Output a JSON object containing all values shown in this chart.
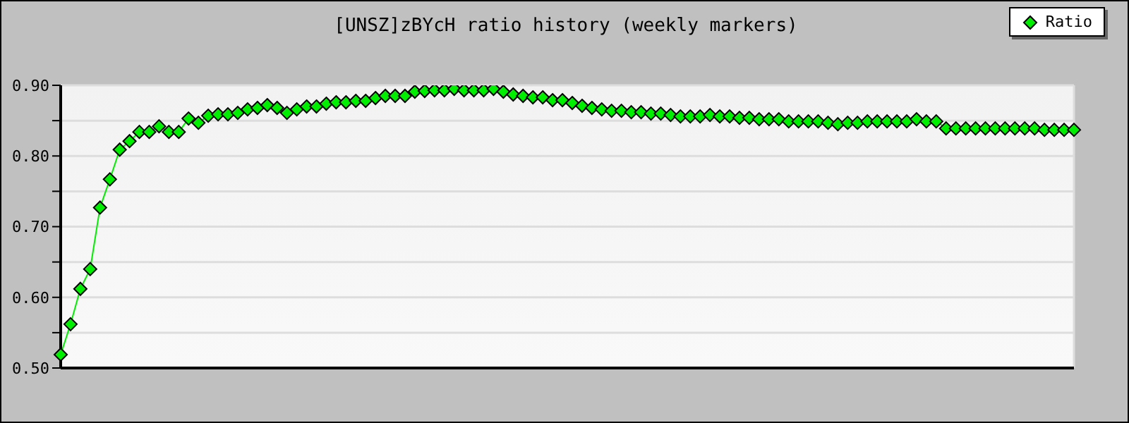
{
  "chart_data": {
    "type": "line",
    "title": "[UNSZ]zBYcH ratio history (weekly markers)",
    "categories": [
      null,
      null,
      null,
      null,
      null,
      null,
      null,
      null,
      null,
      null,
      null,
      null,
      null,
      null,
      null,
      null,
      null,
      null,
      null,
      null,
      null,
      null,
      null,
      null,
      null,
      null,
      null,
      null,
      null,
      null,
      null,
      null,
      null,
      null,
      null,
      null,
      null,
      null,
      null,
      null,
      null,
      null,
      null,
      null,
      null,
      null,
      null,
      null,
      null,
      null,
      null,
      null,
      null,
      null,
      null,
      null,
      null,
      null,
      null,
      null,
      null,
      null,
      null,
      null,
      null,
      null,
      null,
      null,
      null,
      null,
      null,
      null,
      null,
      null,
      null,
      null,
      null,
      null,
      null,
      null,
      null,
      null,
      null,
      null,
      null,
      null,
      null,
      null,
      null,
      null,
      null,
      null,
      null,
      null,
      null,
      null,
      null,
      null,
      null,
      null,
      null,
      null,
      null,
      null
    ],
    "series": [
      {
        "name": "Ratio",
        "color": "#00ee00",
        "values": [
          0.519,
          0.562,
          0.612,
          0.64,
          0.727,
          0.767,
          0.809,
          0.821,
          0.834,
          0.834,
          0.842,
          0.834,
          0.834,
          0.853,
          0.847,
          0.857,
          0.859,
          0.859,
          0.861,
          0.866,
          0.868,
          0.872,
          0.868,
          0.861,
          0.866,
          0.87,
          0.87,
          0.874,
          0.876,
          0.876,
          0.878,
          0.878,
          0.882,
          0.885,
          0.885,
          0.885,
          0.891,
          0.892,
          0.893,
          0.893,
          0.895,
          0.893,
          0.893,
          0.893,
          0.895,
          0.891,
          0.887,
          0.885,
          0.883,
          0.883,
          0.879,
          0.879,
          0.875,
          0.871,
          0.868,
          0.866,
          0.864,
          0.864,
          0.862,
          0.862,
          0.86,
          0.86,
          0.858,
          0.856,
          0.856,
          0.856,
          0.858,
          0.856,
          0.856,
          0.854,
          0.854,
          0.852,
          0.852,
          0.852,
          0.849,
          0.849,
          0.849,
          0.849,
          0.847,
          0.845,
          0.847,
          0.847,
          0.849,
          0.849,
          0.849,
          0.849,
          0.849,
          0.852,
          0.849,
          0.849,
          0.839,
          0.839,
          0.839,
          0.839,
          0.839,
          0.839,
          0.839,
          0.839,
          0.839,
          0.839,
          0.837,
          0.837,
          0.837,
          0.837
        ]
      }
    ],
    "ylim": [
      0.5,
      0.9
    ],
    "yticks": [
      {
        "value": 0.5,
        "label": "0.50"
      },
      {
        "value": 0.55,
        "label": null
      },
      {
        "value": 0.6,
        "label": "0.60"
      },
      {
        "value": 0.65,
        "label": null
      },
      {
        "value": 0.7,
        "label": "0.70"
      },
      {
        "value": 0.75,
        "label": null
      },
      {
        "value": 0.8,
        "label": "0.80"
      },
      {
        "value": 0.85,
        "label": null
      },
      {
        "value": 0.9,
        "label": "0.90"
      }
    ],
    "grid": true,
    "legend": "top right",
    "marker": "diamond",
    "line_style": "solid",
    "tick_labels": "y"
  }
}
